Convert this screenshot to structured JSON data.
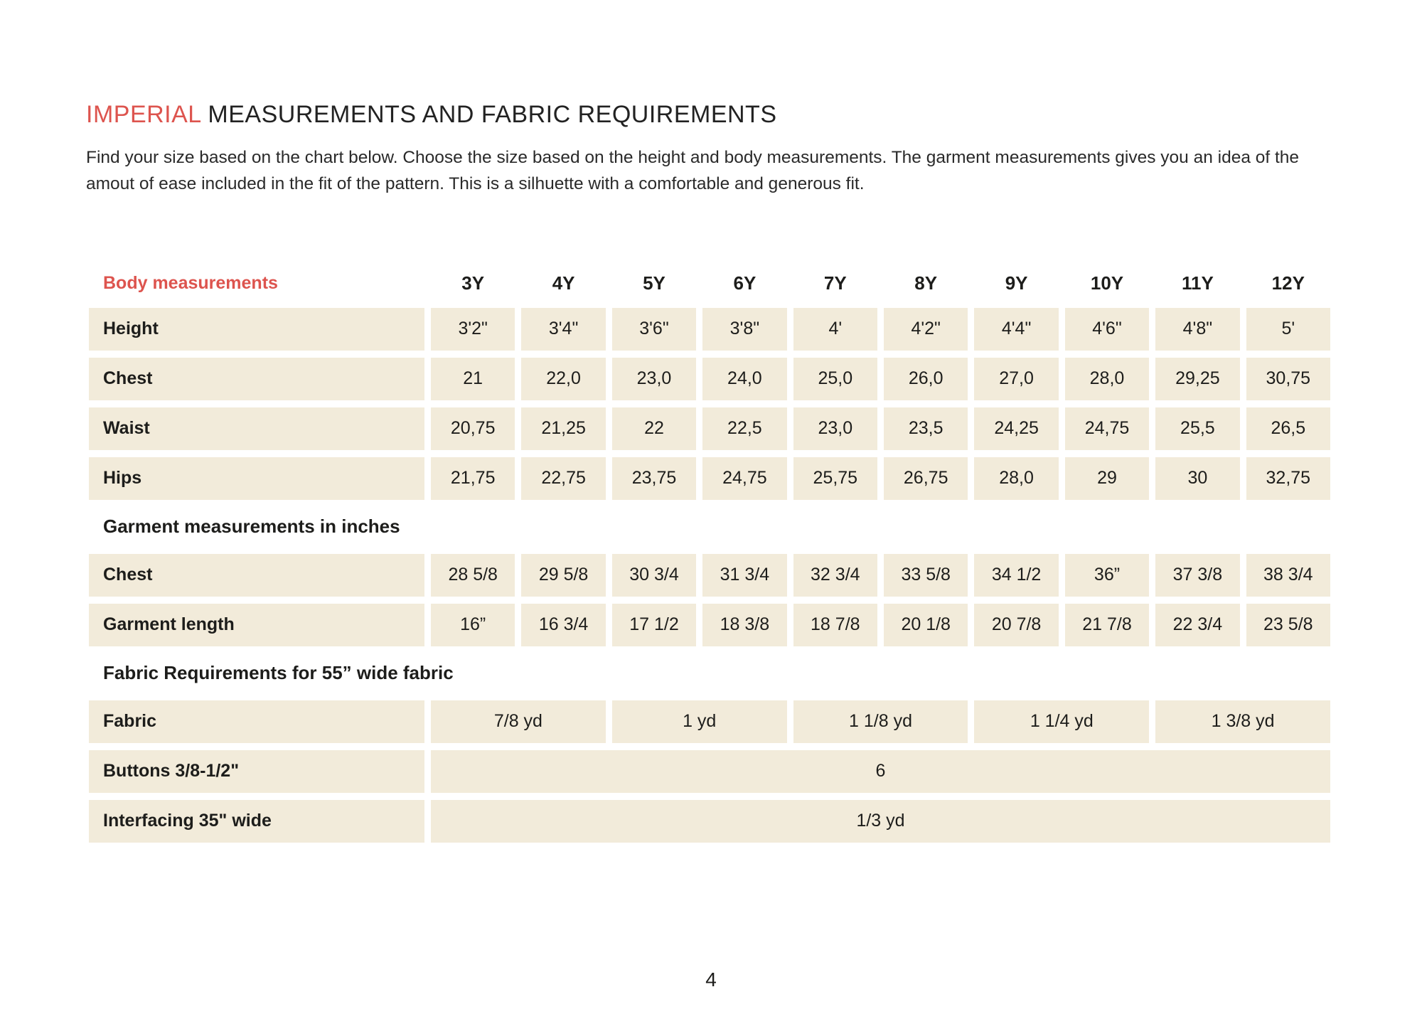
{
  "colors": {
    "accent_red": "#dd544e",
    "cell_beige": "#f2ebda",
    "text_ink": "#1d1d1b"
  },
  "header": {
    "title_accent": "IMPERIAL",
    "title_rest": "MEASUREMENTS AND FABRIC REQUIREMENTS",
    "intro": "Find your size based on the chart below. Choose the size based on the height and body measurements. The garment measurements gives you an idea of the amout of ease included in the fit of the pattern. This is a silhuette with a comfortable and generous fit."
  },
  "table": {
    "header_label": "Body measurements",
    "sizes": [
      "3Y",
      "4Y",
      "5Y",
      "6Y",
      "7Y",
      "8Y",
      "9Y",
      "10Y",
      "11Y",
      "12Y"
    ],
    "body_rows": [
      {
        "label": "Height",
        "values": [
          "3'2\"",
          "3'4\"",
          "3'6\"",
          "3'8\"",
          "4'",
          "4'2\"",
          "4'4\"",
          "4'6\"",
          "4'8\"",
          "5'"
        ]
      },
      {
        "label": "Chest",
        "values": [
          "21",
          "22,0",
          "23,0",
          "24,0",
          "25,0",
          "26,0",
          "27,0",
          "28,0",
          "29,25",
          "30,75"
        ]
      },
      {
        "label": "Waist",
        "values": [
          "20,75",
          "21,25",
          "22",
          "22,5",
          "23,0",
          "23,5",
          "24,25",
          "24,75",
          "25,5",
          "26,5"
        ]
      },
      {
        "label": "Hips",
        "values": [
          "21,75",
          "22,75",
          "23,75",
          "24,75",
          "25,75",
          "26,75",
          "28,0",
          "29",
          "30",
          "32,75"
        ]
      }
    ],
    "garment_section_title": "Garment measurements in inches",
    "garment_rows": [
      {
        "label": "Chest",
        "values": [
          "28 5/8",
          "29 5/8",
          "30 3/4",
          "31 3/4",
          "32 3/4",
          "33 5/8",
          "34 1/2",
          "36”",
          "37 3/8",
          "38 3/4"
        ]
      },
      {
        "label": "Garment length",
        "values": [
          "16”",
          "16 3/4",
          "17 1/2",
          "18 3/8",
          "18 7/8",
          "20 1/8",
          "20 7/8",
          "21 7/8",
          "22 3/4",
          "23 5/8"
        ]
      }
    ],
    "fabric_section_title": "Fabric Requirements for  55” wide fabric",
    "fabric_row": {
      "label": "Fabric",
      "values": [
        "7/8 yd",
        "1 yd",
        "1 1/8 yd",
        "1 1/4 yd",
        "1 3/8 yd"
      ]
    },
    "buttons_row": {
      "label": "Buttons 3/8-1/2\"",
      "value": "6"
    },
    "interfacing_row": {
      "label": "Interfacing  35\" wide",
      "value": "1/3 yd"
    }
  },
  "footer": {
    "page_number": "4"
  }
}
